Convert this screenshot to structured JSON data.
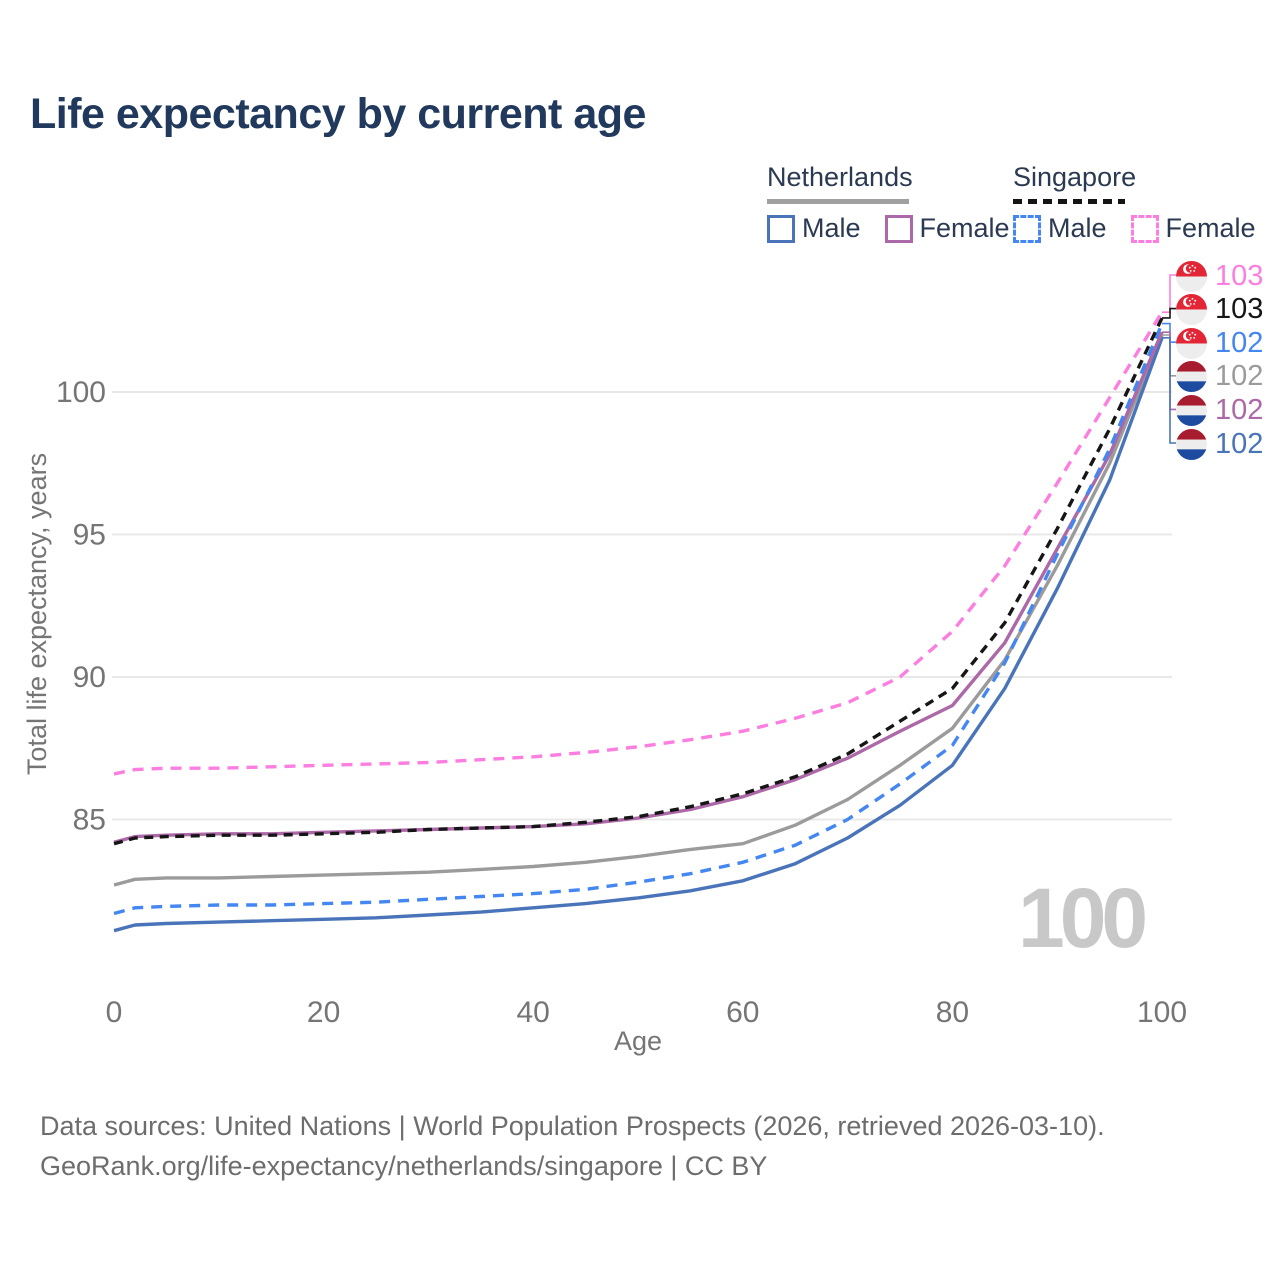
{
  "title": "Life expectancy by current age",
  "legend": {
    "groups": [
      {
        "id": "nl",
        "name": "Netherlands",
        "line_style": "solid",
        "items": [
          {
            "label": "Male",
            "series": "nl_male"
          },
          {
            "label": "Female",
            "series": "nl_female"
          }
        ]
      },
      {
        "id": "sg",
        "name": "Singapore",
        "line_style": "dashed",
        "items": [
          {
            "label": "Male",
            "series": "sg_male"
          },
          {
            "label": "Female",
            "series": "sg_female"
          }
        ]
      }
    ]
  },
  "watermark_age": "100",
  "footer": {
    "line1": "Data sources: United Nations | World Population Prospects (2026, retrieved 2026-03-10).",
    "line2": "GeoRank.org/life-expectancy/netherlands/singapore | CC BY"
  },
  "colors": {
    "title_text": "#20395c",
    "legend_text": "#2b3a52",
    "axis_text": "#757575",
    "gridline": "#e8e8e8",
    "footer_text": "#6d6d6d",
    "watermark": "#c8c8c8",
    "nl_underline": "#a0a0a0",
    "sg_underline": "#141414"
  },
  "chart_data": {
    "type": "line",
    "title": "Life expectancy by current age",
    "xlabel": "Age",
    "ylabel": "Total life expectancy, years",
    "xticks": [
      0,
      20,
      40,
      60,
      80,
      100
    ],
    "yticks": [
      85,
      90,
      95,
      100
    ],
    "xlim": [
      0,
      100
    ],
    "ylim": [
      79,
      104
    ],
    "grid": true,
    "legend_position": "top-right",
    "x": [
      0,
      2,
      5,
      10,
      15,
      20,
      25,
      30,
      35,
      40,
      45,
      50,
      55,
      60,
      65,
      70,
      75,
      80,
      85,
      90,
      95,
      100
    ],
    "series": [
      {
        "id": "nl_total",
        "name": "Netherlands (both sexes)",
        "country": "Netherlands",
        "color": "#9b9b9b",
        "dash": "none",
        "values": [
          82.7,
          82.9,
          82.95,
          82.95,
          83.0,
          83.05,
          83.1,
          83.15,
          83.25,
          83.35,
          83.5,
          83.7,
          83.95,
          84.15,
          84.8,
          85.7,
          86.9,
          88.2,
          90.6,
          93.9,
          97.5,
          102.0
        ]
      },
      {
        "id": "nl_male",
        "name": "Netherlands Male",
        "country": "Netherlands",
        "color": "#4a74b9",
        "dash": "none",
        "values": [
          81.1,
          81.3,
          81.35,
          81.4,
          81.45,
          81.5,
          81.55,
          81.65,
          81.75,
          81.9,
          82.05,
          82.25,
          82.5,
          82.85,
          83.45,
          84.35,
          85.5,
          86.9,
          89.6,
          93.1,
          96.9,
          101.9
        ]
      },
      {
        "id": "nl_female",
        "name": "Netherlands Female",
        "country": "Netherlands",
        "color": "#ad68a8",
        "dash": "none",
        "values": [
          84.2,
          84.4,
          84.45,
          84.5,
          84.5,
          84.55,
          84.6,
          84.65,
          84.7,
          84.75,
          84.85,
          85.05,
          85.35,
          85.8,
          86.4,
          87.15,
          88.1,
          89.0,
          91.2,
          94.5,
          97.8,
          102.1
        ]
      },
      {
        "id": "sg_male",
        "name": "Singapore Male",
        "country": "Singapore",
        "color": "#4486f2",
        "dash": "11 8",
        "values": [
          81.7,
          81.9,
          81.95,
          82.0,
          82.0,
          82.05,
          82.1,
          82.2,
          82.3,
          82.4,
          82.55,
          82.8,
          83.1,
          83.5,
          84.1,
          85.0,
          86.25,
          87.6,
          90.5,
          94.3,
          98.0,
          102.4
        ]
      },
      {
        "id": "sg_total",
        "name": "Singapore (both sexes)",
        "country": "Singapore",
        "color": "#161616",
        "dash": "9 6.5",
        "values": [
          84.15,
          84.35,
          84.4,
          84.45,
          84.45,
          84.5,
          84.55,
          84.65,
          84.7,
          84.75,
          84.9,
          85.1,
          85.45,
          85.9,
          86.5,
          87.3,
          88.45,
          89.6,
          91.9,
          95.2,
          98.7,
          102.6
        ]
      },
      {
        "id": "sg_female",
        "name": "Singapore Female",
        "country": "Singapore",
        "color": "#fc7ee0",
        "dash": "11 8",
        "values": [
          86.6,
          86.75,
          86.8,
          86.8,
          86.85,
          86.9,
          86.95,
          87.0,
          87.1,
          87.2,
          87.35,
          87.55,
          87.8,
          88.1,
          88.55,
          89.1,
          90.0,
          91.6,
          93.9,
          96.8,
          99.8,
          102.8
        ]
      }
    ],
    "end_labels": [
      {
        "value": "103",
        "series": "sg_female",
        "flag": "sg"
      },
      {
        "value": "103",
        "series": "sg_total",
        "flag": "sg"
      },
      {
        "value": "102",
        "series": "sg_male",
        "flag": "sg"
      },
      {
        "value": "102",
        "series": "nl_total",
        "flag": "nl"
      },
      {
        "value": "102",
        "series": "nl_female",
        "flag": "nl"
      },
      {
        "value": "102",
        "series": "nl_male",
        "flag": "nl"
      }
    ]
  }
}
